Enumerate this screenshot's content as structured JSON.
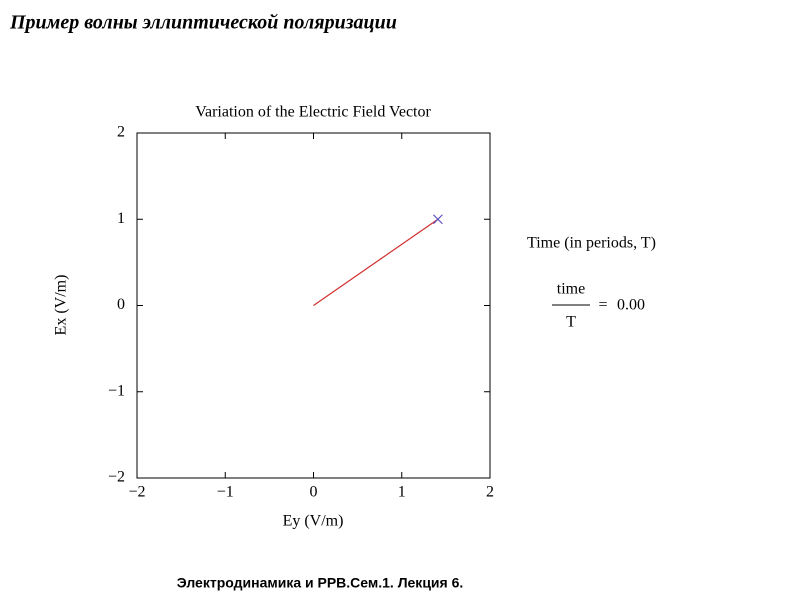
{
  "header": {
    "title": "Пример волны эллиптической  поляризации"
  },
  "chart_data": {
    "type": "line",
    "title": "Variation of the Electric Field Vector",
    "x_label": "Ey (V/m)",
    "y_label": "Ex (V/m)",
    "xlim": [
      -2,
      2
    ],
    "ylim": [
      -2,
      2
    ],
    "xticks": [
      {
        "value": -2,
        "label": "−2"
      },
      {
        "value": -1,
        "label": "−1"
      },
      0,
      1,
      2
    ],
    "yticks": [
      {
        "value": -2,
        "label": "−2"
      },
      {
        "value": -1,
        "label": "−1"
      },
      0,
      1,
      2
    ],
    "grid": false,
    "series": [
      {
        "x": [
          0,
          1.41
        ],
        "values": [
          0,
          1
        ],
        "color": "#d03030"
      }
    ],
    "tip_marker": "x",
    "tip_marker_color": "#5a4fc0",
    "annotation": {
      "heading": "Time (in periods, T)",
      "numerator": "time",
      "denominator": "T",
      "equals": "=",
      "time_value": {
        "value": 0,
        "label": "0.00"
      }
    }
  },
  "footer": {
    "text": "Электродинамика и РРВ.Сем.1. Лекция 6."
  }
}
